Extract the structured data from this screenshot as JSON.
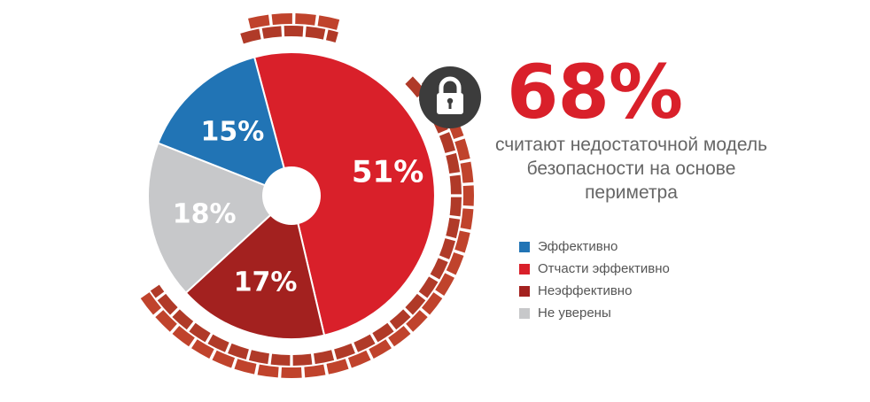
{
  "colors": {
    "accent": "#d9202a",
    "brick": "#b03a28",
    "lock_bg": "#3c3c3c"
  },
  "icons": {
    "lock": "lock-icon"
  },
  "headline": {
    "value": "68%",
    "text": "считают недостаточной модель безопасности на основе периметра"
  },
  "chart_data": {
    "type": "pie",
    "categories": [
      "Эффективно",
      "Отчасти эффективно",
      "Неэффективно",
      "Не уверены"
    ],
    "values": [
      15,
      51,
      17,
      18
    ],
    "labels": [
      "15%",
      "51%",
      "17%",
      "18%"
    ],
    "colors": [
      "#2174b5",
      "#d9202a",
      "#a3211f",
      "#c7c8ca"
    ],
    "donut": true,
    "legend_position": "right"
  }
}
